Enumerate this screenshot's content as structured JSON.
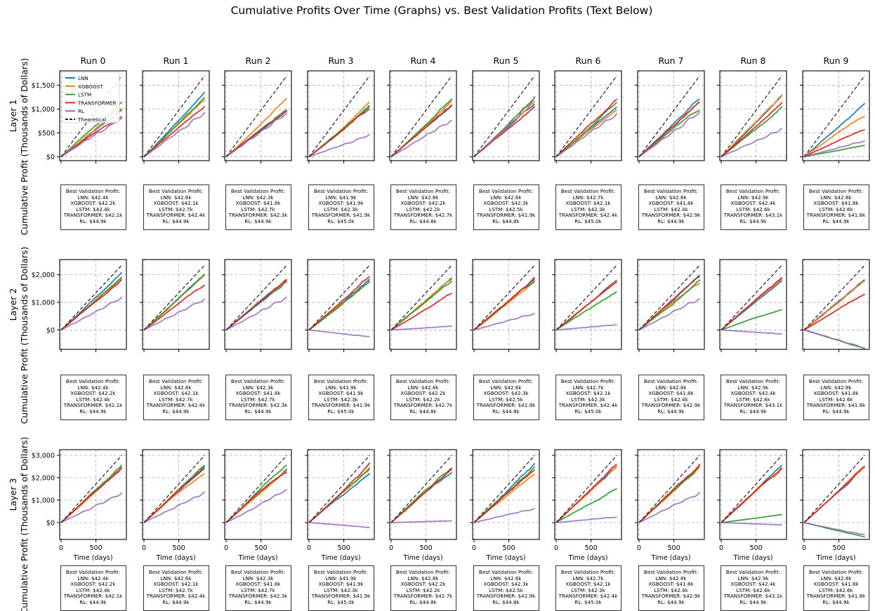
{
  "figure": {
    "title": "Cumulative Profits Over Time (Graphs) vs. Best Validation Profits (Text Below)",
    "xlabel": "Time (days)",
    "ylabel": "Cumulative Profit (Thousands of Dollars)",
    "run_titles": [
      "Run 0",
      "Run 1",
      "Run 2",
      "Run 3",
      "Run 4",
      "Run 5",
      "Run 6",
      "Run 7",
      "Run 8",
      "Run 9"
    ],
    "layer_labels": [
      "Layer 1",
      "Layer 2",
      "Layer 3"
    ],
    "x_tick_labels": [
      "0",
      "500"
    ],
    "y_tick_labels": [
      [
        "$0",
        "$500",
        "$1,000",
        "$1,500"
      ],
      [
        "$0",
        "$1,000",
        "$2,000"
      ],
      [
        "$0",
        "$1,000",
        "$2,000",
        "$3,000"
      ]
    ],
    "legend": [
      {
        "label": "LNN",
        "color": "#1f77b4",
        "dashed": false
      },
      {
        "label": "XGBOOST",
        "color": "#ff7f0e",
        "dashed": false
      },
      {
        "label": "LSTM",
        "color": "#2ca02c",
        "dashed": false
      },
      {
        "label": "TRANSFORMER",
        "color": "#d62728",
        "dashed": false
      },
      {
        "label": "RL",
        "color": "#9467bd",
        "dashed": false
      },
      {
        "label": "Theoretical",
        "color": "#222222",
        "dashed": true
      }
    ],
    "box_heading": "Best Validation Profit:",
    "validation_profits": [
      [
        "LNN: $42.4k",
        "XGBOOST: $42.2k",
        "LSTM: $42.4k",
        "TRANSFORMER: $42.1k",
        "RL: $44.9k"
      ],
      [
        "LNN: $42.6k",
        "XGBOOST: $42.1k",
        "LSTM: $42.7k",
        "TRANSFORMER: $42.4k",
        "RL: $44.9k"
      ],
      [
        "LNN: $42.3k",
        "XGBOOST: $41.8k",
        "LSTM: $42.7k",
        "TRANSFORMER: $42.3k",
        "RL: $44.9k"
      ],
      [
        "LNN: $41.9k",
        "XGBOOST: $41.9k",
        "LSTM: $42.3k",
        "TRANSFORMER: $41.9k",
        "RL: $45.0k"
      ],
      [
        "LNN: $42.8k",
        "XGBOOST: $42.2k",
        "LSTM: $42.2k",
        "TRANSFORMER: $42.7k",
        "RL: $44.8k"
      ],
      [
        "LNN: $42.6k",
        "XGBOOST: $42.3k",
        "LSTM: $42.5k",
        "TRANSFORMER: $41.9k",
        "RL: $44.8k"
      ],
      [
        "LNN: $42.7k",
        "XGBOOST: $42.1k",
        "LSTM: $42.3k",
        "TRANSFORMER: $42.4k",
        "RL: $45.0k"
      ],
      [
        "LNN: $42.8k",
        "XGBOOST: $41.8k",
        "LSTM: $42.4k",
        "TRANSFORMER: $42.9k",
        "RL: $44.9k"
      ],
      [
        "LNN: $42.9k",
        "XGBOOST: $42.4k",
        "LSTM: $42.6k",
        "TRANSFORMER: $43.1k",
        "RL: $44.9k"
      ],
      [
        "LNN: $42.8k",
        "XGBOOST: $41.8k",
        "LSTM: $42.6k",
        "TRANSFORMER: $41.8k",
        "RL: $44.9k"
      ]
    ]
  },
  "chart_data": {
    "type": "line",
    "grid": true,
    "legend_position": "upper-left of Layer 1 Run 0",
    "x_range": [
      0,
      900
    ],
    "x_unit": "days",
    "y_unit": "thousands of dollars",
    "series_names": [
      "LNN",
      "XGBOOST",
      "LSTM",
      "TRANSFORMER",
      "RL",
      "Theoretical"
    ],
    "panels": [
      {
        "layer": 1,
        "ylim": [
          -80,
          1800
        ],
        "yticks": [
          0,
          500,
          1000,
          1500
        ],
        "final_values": [
          {
            "run": 0,
            "LNN": 1020,
            "XGBOOST": 1000,
            "LSTM": 1120,
            "TRANSFORMER": 940,
            "RL": 860,
            "Theoretical": 1700
          },
          {
            "run": 1,
            "LNN": 1270,
            "XGBOOST": 1200,
            "LSTM": 1240,
            "TRANSFORMER": 1060,
            "RL": 880,
            "Theoretical": 1700
          },
          {
            "run": 2,
            "LNN": 960,
            "XGBOOST": 1160,
            "LSTM": 1000,
            "TRANSFORMER": 1000,
            "RL": 900,
            "Theoretical": 1700
          },
          {
            "run": 3,
            "LNN": 1030,
            "XGBOOST": 1030,
            "LSTM": 1010,
            "TRANSFORMER": 990,
            "RL": 450,
            "Theoretical": 1700
          },
          {
            "run": 4,
            "LNN": 1100,
            "XGBOOST": 1120,
            "LSTM": 1170,
            "TRANSFORMER": 1080,
            "RL": 740,
            "Theoretical": 1700
          },
          {
            "run": 5,
            "LNN": 1160,
            "XGBOOST": 1140,
            "LSTM": 1150,
            "TRANSFORMER": 1050,
            "RL": 1120,
            "Theoretical": 1700
          },
          {
            "run": 6,
            "LNN": 1050,
            "XGBOOST": 1000,
            "LSTM": 1080,
            "TRANSFORMER": 1250,
            "RL": 880,
            "Theoretical": 1700
          },
          {
            "run": 7,
            "LNN": 1240,
            "XGBOOST": 1100,
            "LSTM": 1000,
            "TRANSFORMER": 1120,
            "RL": 930,
            "Theoretical": 1700
          },
          {
            "run": 8,
            "LNN": 1150,
            "XGBOOST": 1260,
            "LSTM": 990,
            "TRANSFORMER": 1140,
            "RL": 590,
            "Theoretical": 1700
          },
          {
            "run": 9,
            "LNN": 1090,
            "XGBOOST": 930,
            "LSTM": 250,
            "TRANSFORMER": 610,
            "RL": 330,
            "Theoretical": 1700
          }
        ]
      },
      {
        "layer": 2,
        "ylim": [
          -700,
          2550
        ],
        "yticks": [
          0,
          1000,
          2000
        ],
        "final_values": [
          {
            "run": 0,
            "LNN": 2000,
            "XGBOOST": 1850,
            "LSTM": 1950,
            "TRANSFORMER": 1800,
            "RL": 1150,
            "Theoretical": 2350
          },
          {
            "run": 1,
            "LNN": 1950,
            "XGBOOST": 2000,
            "LSTM": 1900,
            "TRANSFORMER": 1700,
            "RL": 1150,
            "Theoretical": 2350
          },
          {
            "run": 2,
            "LNN": 1850,
            "XGBOOST": 1950,
            "LSTM": 1900,
            "TRANSFORMER": 1900,
            "RL": 1150,
            "Theoretical": 2350
          },
          {
            "run": 3,
            "LNN": 1750,
            "XGBOOST": 1800,
            "LSTM": 1700,
            "TRANSFORMER": 1950,
            "RL": -250,
            "Theoretical": 2350
          },
          {
            "run": 4,
            "LNN": 1900,
            "XGBOOST": 1800,
            "LSTM": 1850,
            "TRANSFORMER": 1250,
            "RL": 130,
            "Theoretical": 2350
          },
          {
            "run": 5,
            "LNN": 1900,
            "XGBOOST": 1650,
            "LSTM": 1850,
            "TRANSFORMER": 1900,
            "RL": 600,
            "Theoretical": 2350
          },
          {
            "run": 6,
            "LNN": 1750,
            "XGBOOST": 1700,
            "LSTM": 1450,
            "TRANSFORMER": 1700,
            "RL": 200,
            "Theoretical": 2350
          },
          {
            "run": 7,
            "LNN": 1900,
            "XGBOOST": 1850,
            "LSTM": 1800,
            "TRANSFORMER": 2000,
            "RL": 1150,
            "Theoretical": 2350
          },
          {
            "run": 8,
            "LNN": 1850,
            "XGBOOST": 1900,
            "LSTM": 800,
            "TRANSFORMER": 1950,
            "RL": -150,
            "Theoretical": 2350
          },
          {
            "run": 9,
            "LNN": 1850,
            "XGBOOST": 1750,
            "LSTM": -650,
            "TRANSFORMER": 1300,
            "RL": -650,
            "Theoretical": 2350
          }
        ]
      },
      {
        "layer": 3,
        "ylim": [
          -750,
          3250
        ],
        "yticks": [
          0,
          1000,
          2000,
          3000
        ],
        "final_values": [
          {
            "run": 0,
            "LNN": 2500,
            "XGBOOST": 2450,
            "LSTM": 2500,
            "TRANSFORMER": 2500,
            "RL": 1350,
            "Theoretical": 3000
          },
          {
            "run": 1,
            "LNN": 2500,
            "XGBOOST": 2400,
            "LSTM": 2550,
            "TRANSFORMER": 2450,
            "RL": 1380,
            "Theoretical": 3000
          },
          {
            "run": 2,
            "LNN": 2450,
            "XGBOOST": 2350,
            "LSTM": 2550,
            "TRANSFORMER": 2450,
            "RL": 1380,
            "Theoretical": 3000
          },
          {
            "run": 3,
            "LNN": 2450,
            "XGBOOST": 2450,
            "LSTM": 2500,
            "TRANSFORMER": 2400,
            "RL": -200,
            "Theoretical": 3000
          },
          {
            "run": 4,
            "LNN": 2500,
            "XGBOOST": 2400,
            "LSTM": 2450,
            "TRANSFORMER": 2400,
            "RL": 80,
            "Theoretical": 3000
          },
          {
            "run": 5,
            "LNN": 2550,
            "XGBOOST": 2400,
            "LSTM": 2500,
            "TRANSFORMER": 2300,
            "RL": 650,
            "Theoretical": 3000
          },
          {
            "run": 6,
            "LNN": 2500,
            "XGBOOST": 2550,
            "LSTM": 1550,
            "TRANSFORMER": 2600,
            "RL": 250,
            "Theoretical": 3000
          },
          {
            "run": 7,
            "LNN": 2550,
            "XGBOOST": 2450,
            "LSTM": 2500,
            "TRANSFORMER": 2500,
            "RL": 1350,
            "Theoretical": 3000
          },
          {
            "run": 8,
            "LNN": 2450,
            "XGBOOST": 2500,
            "LSTM": 350,
            "TRANSFORMER": 2500,
            "RL": -100,
            "Theoretical": 3000
          },
          {
            "run": 9,
            "LNN": 2450,
            "XGBOOST": 2350,
            "LSTM": -650,
            "TRANSFORMER": 2450,
            "RL": -600,
            "Theoretical": 3000
          }
        ]
      }
    ]
  }
}
